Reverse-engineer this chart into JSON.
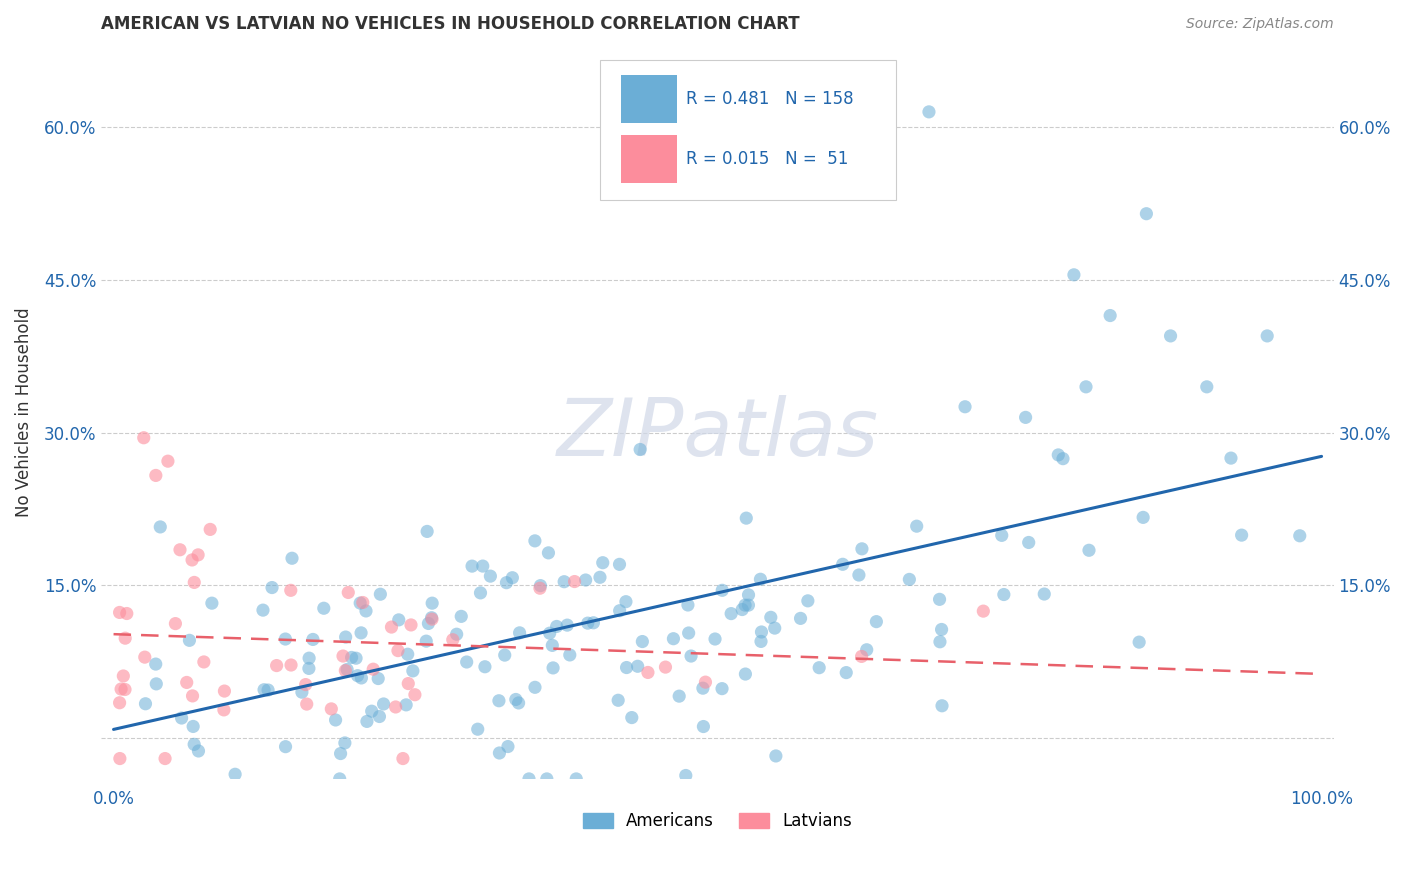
{
  "title": "AMERICAN VS LATVIAN NO VEHICLES IN HOUSEHOLD CORRELATION CHART",
  "source": "Source: ZipAtlas.com",
  "ylabel": "No Vehicles in Household",
  "watermark": "ZIPatlas",
  "legend_blue_R": "0.481",
  "legend_blue_N": "158",
  "legend_pink_R": "0.015",
  "legend_pink_N": " 51",
  "blue_color": "#6baed6",
  "pink_color": "#fc8d9c",
  "blue_line_color": "#2166ac",
  "pink_line_color": "#e8606a",
  "grid_color": "#cccccc",
  "title_color": "#333333",
  "tick_color": "#2166ac",
  "source_color": "#888888",
  "xlim": [
    -0.01,
    1.01
  ],
  "ylim": [
    -0.04,
    0.68
  ],
  "ytick_vals": [
    0.0,
    0.15,
    0.3,
    0.45,
    0.6
  ],
  "ytick_labels": [
    "",
    "15.0%",
    "30.0%",
    "45.0%",
    "60.0%"
  ],
  "xtick_vals": [
    0.0,
    1.0
  ],
  "xtick_labels": [
    "0.0%",
    "100.0%"
  ],
  "am_seed": 42,
  "lat_seed": 99
}
